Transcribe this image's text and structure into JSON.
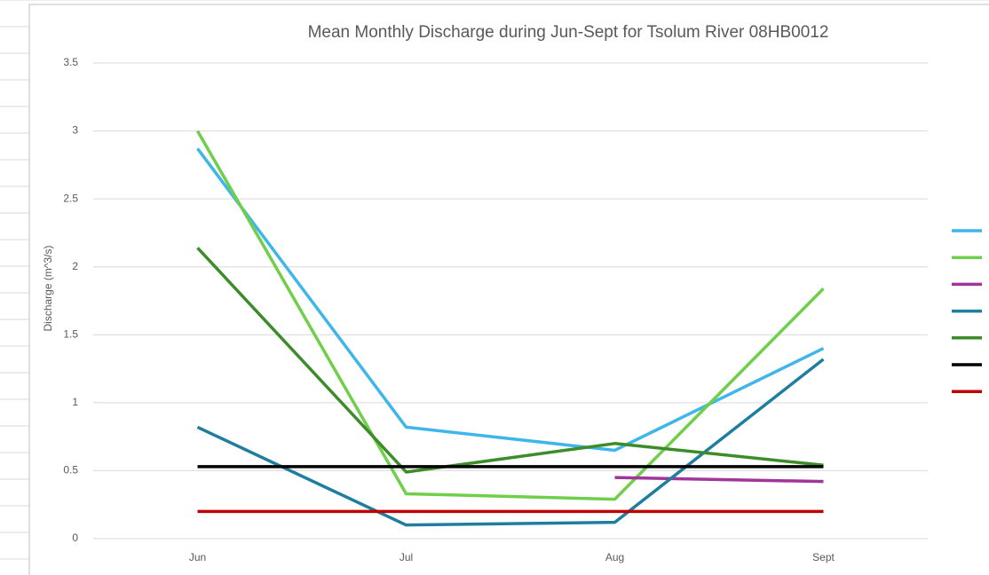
{
  "chart_data": {
    "type": "line",
    "title": "Mean Monthly Discharge during Jun-Sept for Tsolum River 08HB0012",
    "y_label": "Discharge (m^3/s)",
    "categories": [
      "Jun",
      "Jul",
      "Aug",
      "Sept"
    ],
    "series": [
      {
        "color": "#3fb6ea",
        "values": [
          2.87,
          0.82,
          0.65,
          1.4
        ]
      },
      {
        "color": "#6fcf4a",
        "values": [
          3.0,
          0.33,
          0.29,
          1.84
        ]
      },
      {
        "color": "#a0359a",
        "values": [
          null,
          null,
          0.45,
          0.42
        ]
      },
      {
        "color": "#1f7ea0",
        "values": [
          0.82,
          0.1,
          0.12,
          1.32
        ]
      },
      {
        "color": "#3d8c2a",
        "values": [
          2.14,
          0.49,
          0.7,
          0.54
        ]
      },
      {
        "color": "#000000",
        "values": [
          0.53,
          0.53,
          0.53,
          0.53
        ]
      },
      {
        "color": "#c00000",
        "values": [
          0.2,
          0.2,
          0.2,
          0.2
        ]
      }
    ],
    "ylim": [
      0,
      3.5
    ],
    "yticks": [
      0,
      0.5,
      1,
      1.5,
      2,
      2.5,
      3,
      3.5
    ],
    "grid": true,
    "legend": "right"
  }
}
